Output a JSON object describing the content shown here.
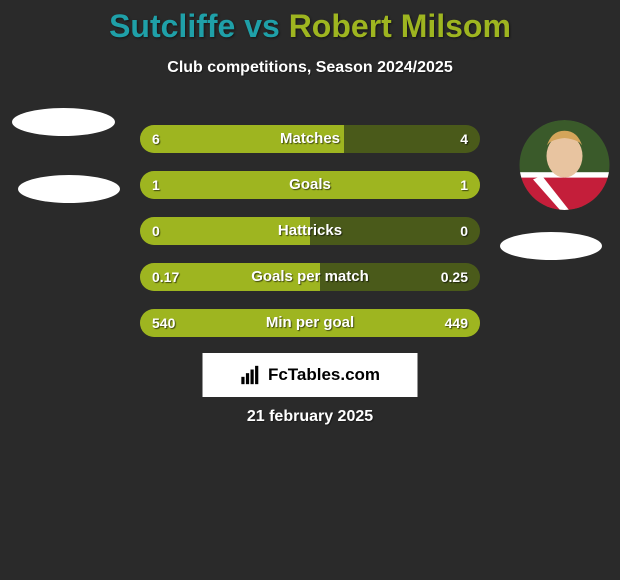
{
  "title": {
    "player1_name": "Sutcliffe",
    "vs_text": "vs",
    "player2_name": "Robert Milsom",
    "player1_color": "#1fa0a8",
    "player2_color": "#9eb520"
  },
  "subtitle": "Club competitions, Season 2024/2025",
  "background_color": "#2a2a2a",
  "avatar_right": {
    "jersey_color": "#c41e3a",
    "skin_color": "#e8c4a0",
    "hair_color": "#d4a55a"
  },
  "stats": [
    {
      "label": "Matches",
      "value_left": "6",
      "value_right": "4",
      "fill_left_pct": 60,
      "row_bg": "#4a5a1a",
      "fill_color": "#9eb520"
    },
    {
      "label": "Goals",
      "value_left": "1",
      "value_right": "1",
      "fill_left_pct": 100,
      "row_bg": "#4a5a1a",
      "fill_color": "#9eb520"
    },
    {
      "label": "Hattricks",
      "value_left": "0",
      "value_right": "0",
      "fill_left_pct": 50,
      "row_bg": "#4a5a1a",
      "fill_color": "#9eb520"
    },
    {
      "label": "Goals per match",
      "value_left": "0.17",
      "value_right": "0.25",
      "fill_left_pct": 53,
      "row_bg": "#4a5a1a",
      "fill_color": "#9eb520"
    },
    {
      "label": "Min per goal",
      "value_left": "540",
      "value_right": "449",
      "fill_left_pct": 100,
      "row_bg": "#4a5a1a",
      "fill_color": "#9eb520"
    }
  ],
  "brand": {
    "text": "FcTables.com",
    "box_bg": "#ffffff",
    "text_color": "#000000"
  },
  "date": "21 february 2025"
}
